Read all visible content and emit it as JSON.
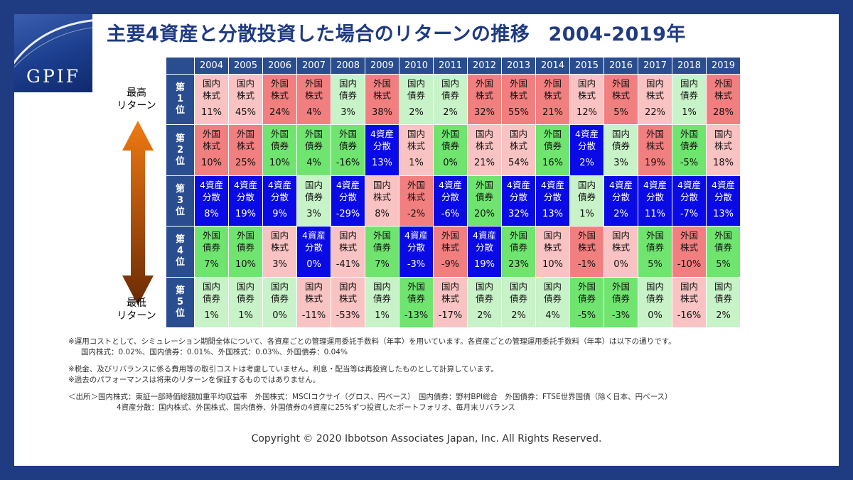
{
  "logo": {
    "text": "GPIF"
  },
  "title": {
    "main": "主要4資産と分散投資した場合のリターンの推移",
    "years": "2004-2019年"
  },
  "side_labels": {
    "top_line1": "最高",
    "top_line2": "リターン",
    "bottom_line1": "最低",
    "bottom_line2": "リターン"
  },
  "colors": {
    "frame": "#1f3b82",
    "header": "#2a4d8f",
    "国内株式": "#f9c3c3",
    "外国株式": "#f27f7f",
    "国内債券": "#c8f2c8",
    "外国債券": "#6fe46f",
    "4資産分散": "#0a0ae6",
    "arrow_top": "#f07a12",
    "arrow_bottom": "#6a2a05"
  },
  "chart_data": {
    "type": "table",
    "title": "主要4資産と分散投資した場合のリターンの推移　2004-2019年",
    "columns": [
      "2004",
      "2005",
      "2006",
      "2007",
      "2008",
      "2009",
      "2010",
      "2011",
      "2012",
      "2013",
      "2014",
      "2015",
      "2016",
      "2017",
      "2018",
      "2019"
    ],
    "rows": [
      {
        "rank": "第1位",
        "assets": [
          "国内株式",
          "国内株式",
          "外国株式",
          "外国株式",
          "国内債券",
          "外国株式",
          "国内債券",
          "国内債券",
          "外国株式",
          "外国株式",
          "外国株式",
          "国内株式",
          "外国株式",
          "国内株式",
          "国内債券",
          "外国株式"
        ],
        "returns": [
          "11%",
          "45%",
          "24%",
          "4%",
          "3%",
          "38%",
          "2%",
          "2%",
          "32%",
          "55%",
          "21%",
          "12%",
          "5%",
          "22%",
          "1%",
          "28%"
        ]
      },
      {
        "rank": "第2位",
        "assets": [
          "外国株式",
          "外国株式",
          "外国債券",
          "外国債券",
          "外国債券",
          "4資産分散",
          "国内株式",
          "外国債券",
          "国内株式",
          "国内株式",
          "外国債券",
          "4資産分散",
          "国内債券",
          "外国株式",
          "外国債券",
          "国内株式"
        ],
        "returns": [
          "10%",
          "25%",
          "10%",
          "4%",
          "-16%",
          "13%",
          "1%",
          "0%",
          "21%",
          "54%",
          "16%",
          "2%",
          "3%",
          "19%",
          "-5%",
          "18%"
        ]
      },
      {
        "rank": "第3位",
        "assets": [
          "4資産分散",
          "4資産分散",
          "4資産分散",
          "国内債券",
          "4資産分散",
          "国内株式",
          "外国株式",
          "4資産分散",
          "外国債券",
          "4資産分散",
          "4資産分散",
          "国内債券",
          "4資産分散",
          "4資産分散",
          "4資産分散",
          "4資産分散"
        ],
        "returns": [
          "8%",
          "19%",
          "9%",
          "3%",
          "-29%",
          "8%",
          "-2%",
          "-6%",
          "20%",
          "32%",
          "13%",
          "1%",
          "2%",
          "11%",
          "-7%",
          "13%"
        ]
      },
      {
        "rank": "第4位",
        "assets": [
          "外国債券",
          "外国債券",
          "国内株式",
          "4資産分散",
          "国内株式",
          "外国債券",
          "4資産分散",
          "外国株式",
          "4資産分散",
          "外国債券",
          "国内株式",
          "外国株式",
          "国内株式",
          "外国債券",
          "外国株式",
          "外国債券"
        ],
        "returns": [
          "7%",
          "10%",
          "3%",
          "0%",
          "-41%",
          "7%",
          "-3%",
          "-9%",
          "19%",
          "23%",
          "10%",
          "-1%",
          "0%",
          "5%",
          "-10%",
          "5%"
        ]
      },
      {
        "rank": "第5位",
        "assets": [
          "国内債券",
          "国内債券",
          "国内債券",
          "国内株式",
          "国内株式",
          "国内債券",
          "外国債券",
          "国内株式",
          "国内債券",
          "国内債券",
          "国内債券",
          "外国債券",
          "外国債券",
          "国内債券",
          "国内株式",
          "国内債券"
        ],
        "returns": [
          "1%",
          "1%",
          "0%",
          "-11%",
          "-53%",
          "1%",
          "-13%",
          "-17%",
          "2%",
          "2%",
          "4%",
          "-5%",
          "-3%",
          "0%",
          "-16%",
          "2%"
        ]
      }
    ]
  },
  "notes": [
    "※運用コストとして、シミュレーション期間全体について、各資産ごとの管理運用委託手数料（年率）を用いています。各資産ごとの管理運用委託手数料（年率）は以下の通りです。",
    "国内株式：0.02%、国内債券：0.01%、外国株式：0.03%、外国債券：0.04%",
    "※税金、及びリバランスに係る費用等の取引コストは考慮していません。利息・配当等は再投資したものとして計算しています。",
    "※過去のパフォーマンスは将来のリターンを保証するものではありません。",
    "＜出所＞国内株式：東証一部時価総額加重平均収益率　外国株式：MSCIコクサイ（グロス、円ベース）　国内債券：野村BPI総合　外国債券：FTSE世界国債（除く日本、円ベース）",
    "4資産分散：国内株式、外国株式、国内債券、外国債券の4資産に25%ずつ投資したポートフォリオ、毎月末リバランス"
  ],
  "copyright": "Copyright © 2020 Ibbotson Associates Japan, Inc. All Rights Reserved."
}
